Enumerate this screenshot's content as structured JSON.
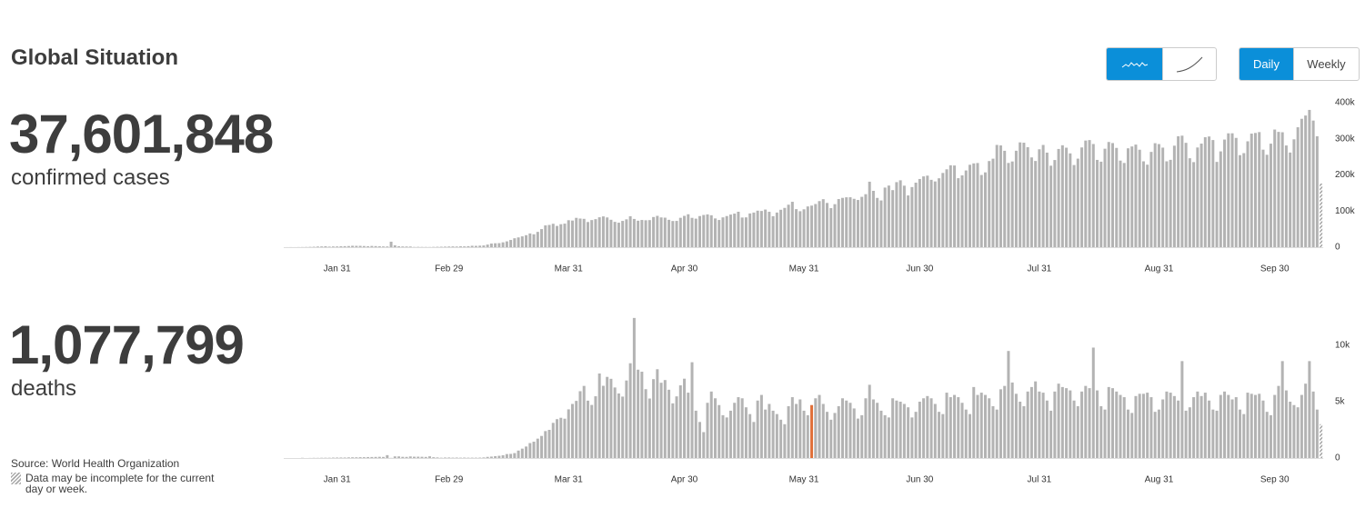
{
  "title": "Global Situation",
  "toggles": {
    "daily": "Daily",
    "weekly": "Weekly"
  },
  "stats": [
    {
      "value": "37,601,848",
      "label": "confirmed cases"
    },
    {
      "value": "1,077,799",
      "label": "deaths"
    }
  ],
  "source": "Source: World Health Organization",
  "note": "Data may be incomplete for the current day or week.",
  "chart_data": [
    {
      "type": "bar",
      "color": "#b3b3b3",
      "hatch_last": true,
      "categories": [
        null,
        null,
        null,
        null,
        null,
        null,
        null,
        null,
        null,
        null,
        null,
        null,
        null,
        "Jan 31",
        null,
        null,
        null,
        null,
        null,
        null,
        null,
        null,
        null,
        null,
        null,
        null,
        null,
        null,
        null,
        null,
        null,
        null,
        null,
        null,
        null,
        null,
        null,
        null,
        null,
        null,
        null,
        null,
        "Feb 29",
        null,
        null,
        null,
        null,
        null,
        null,
        null,
        null,
        null,
        null,
        null,
        null,
        null,
        null,
        null,
        null,
        null,
        null,
        null,
        null,
        null,
        null,
        null,
        null,
        null,
        null,
        null,
        null,
        null,
        null,
        "Mar 31",
        null,
        null,
        null,
        null,
        null,
        null,
        null,
        null,
        null,
        null,
        null,
        null,
        null,
        null,
        null,
        null,
        null,
        null,
        null,
        null,
        null,
        null,
        null,
        null,
        null,
        null,
        null,
        null,
        null,
        "Apr 30",
        null,
        null,
        null,
        null,
        null,
        null,
        null,
        null,
        null,
        null,
        null,
        null,
        null,
        null,
        null,
        null,
        null,
        null,
        null,
        null,
        null,
        null,
        null,
        null,
        null,
        null,
        null,
        null,
        null,
        null,
        "May 31",
        null,
        null,
        null,
        null,
        null,
        null,
        null,
        null,
        null,
        null,
        null,
        null,
        null,
        null,
        null,
        null,
        null,
        null,
        null,
        null,
        null,
        null,
        null,
        null,
        null,
        null,
        null,
        null,
        null,
        "Jun 30",
        null,
        null,
        null,
        null,
        null,
        null,
        null,
        null,
        null,
        null,
        null,
        null,
        null,
        null,
        null,
        null,
        null,
        null,
        null,
        null,
        null,
        null,
        null,
        null,
        null,
        null,
        null,
        null,
        null,
        null,
        "Jul 31",
        null,
        null,
        null,
        null,
        null,
        null,
        null,
        null,
        null,
        null,
        null,
        null,
        null,
        null,
        null,
        null,
        null,
        null,
        null,
        null,
        null,
        null,
        null,
        null,
        null,
        null,
        null,
        null,
        null,
        null,
        "Aug 31",
        null,
        null,
        null,
        null,
        null,
        null,
        null,
        null,
        null,
        null,
        null,
        null,
        null,
        null,
        null,
        null,
        null,
        null,
        null,
        null,
        null,
        null,
        null,
        null,
        null,
        null,
        null,
        null,
        null,
        "Sep 30",
        null,
        null,
        null,
        null,
        null,
        null,
        null,
        null,
        null,
        null,
        null,
        null
      ],
      "values": [
        100,
        200,
        100,
        300,
        400,
        600,
        900,
        1200,
        1800,
        2100,
        2600,
        1600,
        2000,
        2100,
        2600,
        2800,
        3200,
        3900,
        3700,
        3700,
        3200,
        2700,
        3400,
        3000,
        2500,
        2100,
        2000,
        15200,
        5100,
        2600,
        2000,
        1900,
        1800,
        600,
        900,
        700,
        600,
        500,
        800,
        1100,
        1300,
        1500,
        1900,
        2100,
        1800,
        2400,
        2200,
        2800,
        3900,
        3700,
        4200,
        4800,
        7200,
        10100,
        10900,
        11200,
        13400,
        16100,
        20000,
        24700,
        27100,
        30000,
        33200,
        38000,
        35700,
        42400,
        50100,
        60300,
        61600,
        64800,
        58900,
        63600,
        65200,
        74700,
        73800,
        81200,
        79300,
        78500,
        69700,
        75100,
        77600,
        82800,
        85200,
        82300,
        75900,
        70100,
        67800,
        72800,
        77100,
        85700,
        78200,
        73300,
        75300,
        74500,
        75000,
        83500,
        86800,
        82400,
        81700,
        75800,
        72500,
        72800,
        81300,
        86700,
        91100,
        81200,
        79000,
        86200,
        89200,
        90800,
        88400,
        79600,
        75300,
        82500,
        86200,
        90300,
        93000,
        98100,
        82100,
        82500,
        93400,
        95900,
        101100,
        100300,
        104200,
        98000,
        85800,
        95900,
        103600,
        108800,
        117600,
        125700,
        105300,
        99600,
        104900,
        112800,
        115100,
        119500,
        127600,
        132900,
        122500,
        108100,
        119100,
        133200,
        136500,
        138100,
        138200,
        133900,
        130700,
        139400,
        146700,
        181300,
        156000,
        136400,
        129400,
        165000,
        170600,
        158000,
        180100,
        185200,
        170300,
        143200,
        166400,
        178600,
        188800,
        196000,
        198100,
        186500,
        182000,
        190700,
        205500,
        215600,
        226800,
        226100,
        191000,
        198800,
        212400,
        228100,
        232000,
        233000,
        199900,
        207100,
        238500,
        245000,
        283100,
        281700,
        266900,
        233200,
        237300,
        267000,
        290100,
        289200,
        276800,
        248500,
        238700,
        271000,
        283000,
        261800,
        225600,
        241300,
        271900,
        282200,
        275400,
        259700,
        227400,
        245100,
        276100,
        295200,
        296500,
        285600,
        241600,
        236700,
        272600,
        291200,
        288200,
        274800,
        239700,
        233100,
        273700,
        278800,
        284000,
        269800,
        237700,
        228400,
        263800,
        287900,
        285400,
        275600,
        237700,
        241800,
        281000,
        307200,
        308700,
        288900,
        246200,
        235500,
        276000,
        286800,
        304500,
        306500,
        296600,
        236100,
        265200,
        297900,
        315200,
        315300,
        302500,
        254800,
        260400,
        293100,
        314400,
        316200,
        318600,
        270000,
        255800,
        286600,
        325700,
        319200,
        318200,
        281600,
        262000,
        298600,
        332000,
        355400,
        364500,
        380000,
        350500,
        307100,
        176000
      ],
      "ylim": [
        0,
        400000
      ],
      "yticks": [
        0,
        {
          "value": 100000,
          "label": "100k"
        },
        {
          "value": 200000,
          "label": "200k"
        },
        {
          "value": 300000,
          "label": "300k"
        },
        {
          "value": 400000,
          "label": "400k"
        }
      ]
    },
    {
      "type": "bar",
      "color": "#b3b3b3",
      "hatch_last": true,
      "highlight_index": 136,
      "highlight_color": "#e0703a",
      "categories": [
        null,
        null,
        null,
        null,
        null,
        null,
        null,
        null,
        null,
        null,
        null,
        null,
        null,
        "Jan 31",
        null,
        null,
        null,
        null,
        null,
        null,
        null,
        null,
        null,
        null,
        null,
        null,
        null,
        null,
        null,
        null,
        null,
        null,
        null,
        null,
        null,
        null,
        null,
        null,
        null,
        null,
        null,
        null,
        "Feb 29",
        null,
        null,
        null,
        null,
        null,
        null,
        null,
        null,
        null,
        null,
        null,
        null,
        null,
        null,
        null,
        null,
        null,
        null,
        null,
        null,
        null,
        null,
        null,
        null,
        null,
        null,
        null,
        null,
        null,
        null,
        "Mar 31",
        null,
        null,
        null,
        null,
        null,
        null,
        null,
        null,
        null,
        null,
        null,
        null,
        null,
        null,
        null,
        null,
        null,
        null,
        null,
        null,
        null,
        null,
        null,
        null,
        null,
        null,
        null,
        null,
        null,
        "Apr 30",
        null,
        null,
        null,
        null,
        null,
        null,
        null,
        null,
        null,
        null,
        null,
        null,
        null,
        null,
        null,
        null,
        null,
        null,
        null,
        null,
        null,
        null,
        null,
        null,
        null,
        null,
        null,
        null,
        null,
        null,
        "May 31",
        null,
        null,
        null,
        null,
        null,
        null,
        null,
        null,
        null,
        null,
        null,
        null,
        null,
        null,
        null,
        null,
        null,
        null,
        null,
        null,
        null,
        null,
        null,
        null,
        null,
        null,
        null,
        null,
        null,
        "Jun 30",
        null,
        null,
        null,
        null,
        null,
        null,
        null,
        null,
        null,
        null,
        null,
        null,
        null,
        null,
        null,
        null,
        null,
        null,
        null,
        null,
        null,
        null,
        null,
        null,
        null,
        null,
        null,
        null,
        null,
        null,
        "Jul 31",
        null,
        null,
        null,
        null,
        null,
        null,
        null,
        null,
        null,
        null,
        null,
        null,
        null,
        null,
        null,
        null,
        null,
        null,
        null,
        null,
        null,
        null,
        null,
        null,
        null,
        null,
        null,
        null,
        null,
        null,
        "Aug 31",
        null,
        null,
        null,
        null,
        null,
        null,
        null,
        null,
        null,
        null,
        null,
        null,
        null,
        null,
        null,
        null,
        null,
        null,
        null,
        null,
        null,
        null,
        null,
        null,
        null,
        null,
        null,
        null,
        null,
        "Sep 30",
        null,
        null,
        null,
        null,
        null,
        null,
        null,
        null,
        null,
        null,
        null,
        null
      ],
      "values": [
        0,
        0,
        0,
        0,
        17,
        1,
        8,
        16,
        15,
        24,
        26,
        26,
        38,
        43,
        46,
        45,
        57,
        64,
        65,
        73,
        73,
        86,
        89,
        97,
        108,
        97,
        254,
        13,
        143,
        142,
        105,
        98,
        139,
        115,
        118,
        109,
        97,
        150,
        71,
        52,
        29,
        44,
        47,
        35,
        42,
        31,
        38,
        31,
        33,
        30,
        37,
        52,
        100,
        127,
        165,
        197,
        250,
        350,
        368,
        435,
        660,
        834,
        1020,
        1325,
        1450,
        1720,
        1960,
        2390,
        2500,
        3120,
        3450,
        3570,
        3490,
        4320,
        4800,
        5070,
        5930,
        6400,
        5090,
        4710,
        5480,
        7500,
        6410,
        7200,
        7030,
        6260,
        5730,
        5450,
        6880,
        8410,
        12430,
        7840,
        7660,
        6110,
        5280,
        7000,
        7880,
        6680,
        6920,
        6060,
        4850,
        5470,
        6450,
        7040,
        5800,
        8500,
        4200,
        3200,
        2300,
        4900,
        5900,
        5300,
        4700,
        3800,
        3600,
        4200,
        4900,
        5400,
        5300,
        4500,
        3900,
        3200,
        5100,
        5600,
        4300,
        4800,
        4200,
        3900,
        3400,
        3000,
        4600,
        5400,
        4800,
        5200,
        4200,
        3800,
        4700,
        5300,
        5600,
        4800,
        4100,
        3400,
        4000,
        4600,
        5300,
        5100,
        4900,
        4400,
        3500,
        3800,
        5300,
        6500,
        5200,
        4900,
        4200,
        3800,
        3600,
        5300,
        5100,
        5000,
        4800,
        4500,
        3600,
        4100,
        5000,
        5300,
        5500,
        5300,
        4800,
        4100,
        3900,
        5800,
        5400,
        5600,
        5400,
        4900,
        4300,
        3900,
        6300,
        5600,
        5800,
        5600,
        5300,
        4600,
        4300,
        6100,
        6400,
        9500,
        6700,
        5700,
        5000,
        4600,
        5900,
        6300,
        6800,
        5900,
        5800,
        5100,
        4200,
        5900,
        6600,
        6300,
        6200,
        6000,
        5100,
        4600,
        5900,
        6400,
        6200,
        9800,
        6000,
        4600,
        4300,
        6300,
        6200,
        5900,
        5600,
        5400,
        4300,
        4000,
        5500,
        5700,
        5700,
        5800,
        5400,
        4100,
        4300,
        5200,
        5900,
        5800,
        5500,
        5100,
        8600,
        4200,
        4500,
        5400,
        5900,
        5500,
        5800,
        5100,
        4300,
        4200,
        5600,
        5900,
        5600,
        5200,
        5400,
        4300,
        3900,
        5800,
        5700,
        5600,
        5700,
        5100,
        4100,
        3800,
        5600,
        6400,
        8600,
        6000,
        5000,
        4700,
        4500,
        5600,
        6600,
        8600,
        5900,
        4300,
        3000
      ],
      "ylim": [
        0,
        12500
      ],
      "yticks": [
        0,
        {
          "value": 5000,
          "label": "5k"
        },
        {
          "value": 10000,
          "label": "10k"
        }
      ]
    }
  ]
}
